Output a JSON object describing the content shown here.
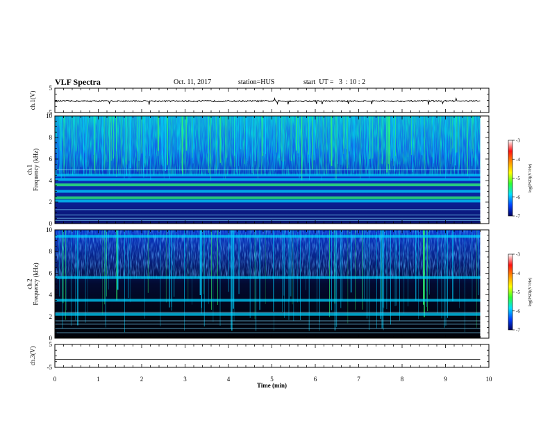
{
  "header": {
    "title": "VLF Spectra",
    "date": "Oct. 11, 2017",
    "station": "station=HUS",
    "start": "start  UT =   3  : 10 : 2"
  },
  "chart_data": [
    {
      "type": "line",
      "panel": "ch1-waveform",
      "ylabel": "ch.1(V)",
      "ylim": [
        -5,
        5
      ],
      "yticks": [
        "5",
        "-5"
      ],
      "xlim": [
        0,
        10
      ],
      "series": [
        {
          "values_description_level_V": -0.3,
          "noise_amplitude_V": 0.6
        }
      ]
    },
    {
      "type": "heatmap",
      "panel": "ch1-spectrogram",
      "ylabel": "ch.1\nFrequency  (kHz)",
      "ylabel_line1": "ch.1",
      "ylabel_line2": "Frequency  (kHz)",
      "ylim": [
        0,
        10
      ],
      "yticks": [
        "0",
        "2",
        "4",
        "6",
        "8",
        "10"
      ],
      "xlim": [
        0,
        10
      ],
      "band_lines_kHz": [
        0.3,
        0.5,
        0.8,
        1.3,
        2.1,
        2.4,
        3.0,
        3.6,
        4.1,
        4.5,
        5.0
      ],
      "colorbar": {
        "label": "log(PSD)(V²/Hz)",
        "range": [
          -7,
          -3
        ],
        "ticks": [
          "-3",
          "-4",
          "-5",
          "-6",
          "-7"
        ]
      }
    },
    {
      "type": "heatmap",
      "panel": "ch2-spectrogram",
      "ylabel": "ch.2\nFrequency  (kHz)",
      "ylabel_line1": "ch.2",
      "ylabel_line2": "Frequency  (kHz)",
      "ylim": [
        0,
        10
      ],
      "yticks": [
        "0",
        "2",
        "4",
        "6",
        "8",
        "10"
      ],
      "xlim": [
        0,
        10
      ],
      "band_lines_kHz": [
        0.5,
        0.9,
        1.3,
        1.6,
        2.2,
        2.4,
        3.5,
        5.6,
        9.4
      ],
      "colorbar": {
        "label": "log(PSD)(V²/Hz)",
        "range": [
          -7,
          -3
        ],
        "ticks": [
          "-3",
          "-4",
          "-5",
          "-6",
          "-7"
        ]
      }
    },
    {
      "type": "line",
      "panel": "ch3-waveform",
      "ylabel": "ch.3(V)",
      "ylim": [
        -5,
        5
      ],
      "yticks": [
        "5",
        "-5"
      ],
      "xlim": [
        0,
        10
      ],
      "series": [
        {
          "values_description_level_V": -1.5,
          "noise_amplitude_V": 0
        }
      ]
    }
  ],
  "xaxis": {
    "label": "Time  (min)",
    "ticks": [
      "0",
      "1",
      "2",
      "3",
      "4",
      "5",
      "6",
      "7",
      "8",
      "9",
      "10"
    ],
    "data_end_min": 9.8
  },
  "colors": {
    "axis": "#000000",
    "trace": "#000000",
    "background_low": "#000000",
    "background_mid": "#0a2a9a",
    "noise_blue": "#1a5cff",
    "cyan": "#00d2ff",
    "green": "#30ff70",
    "colormap": [
      "#ffffff",
      "#ff1010",
      "#ff9000",
      "#ffff00",
      "#30ff30",
      "#00e0ff",
      "#0040ff",
      "#000060"
    ]
  }
}
